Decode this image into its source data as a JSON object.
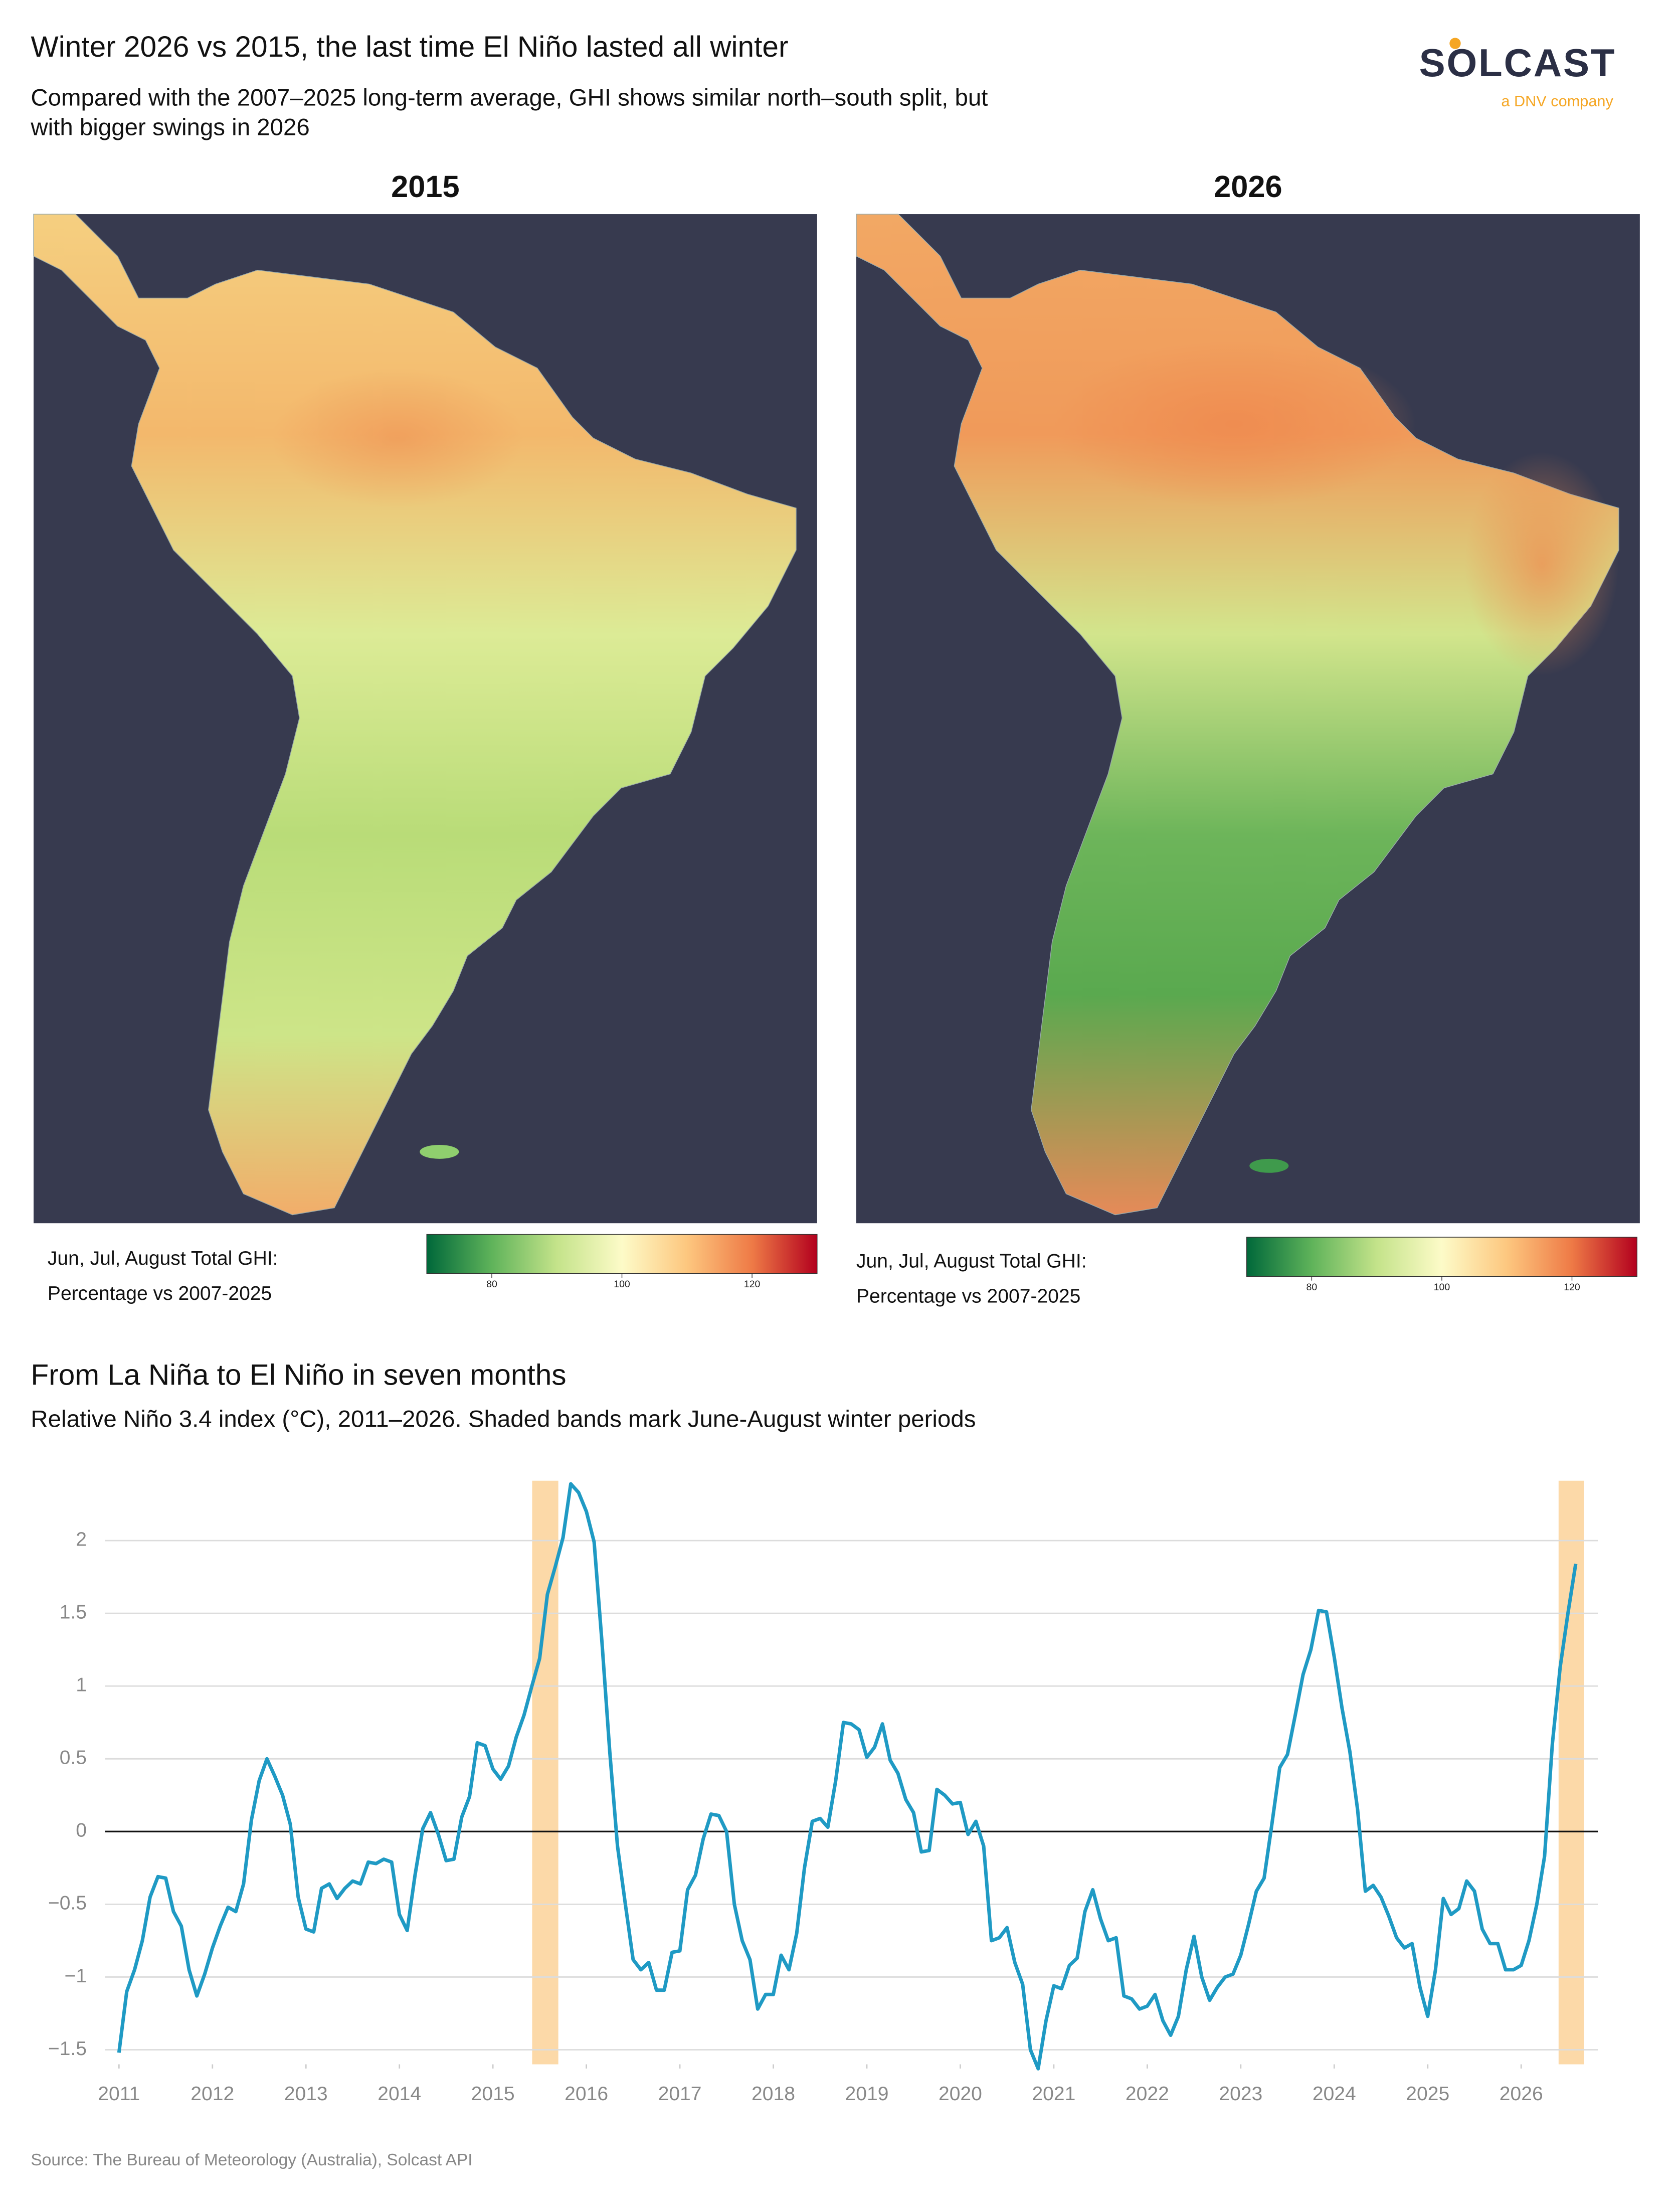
{
  "header": {
    "title": "Winter 2026 vs 2015, the last time El Niño lasted all winter",
    "subtitle": [
      "Compared with the 2007–2025 long-term average, GHI shows similar north–south split, but",
      "with bigger swings in 2026"
    ],
    "logo": "SOLCAST",
    "logo_tagline": "a DNV company"
  },
  "maps": {
    "panels": [
      {
        "title": "2015",
        "legend_title": [
          "Jun, Jul, August Total GHI:",
          "Percentage vs 2007-2025"
        ]
      },
      {
        "title": "2026",
        "legend_title": [
          "Jun, Jul, August Total GHI:",
          "Percentage vs 2007-2025"
        ]
      }
    ],
    "colorbar": {
      "lim": [
        70,
        130
      ],
      "ticks": [
        80,
        100,
        120
      ],
      "colors": [
        "#00683a",
        "#5fb35a",
        "#c4e38a",
        "#fdfbc8",
        "#fdc77f",
        "#ee7a46",
        "#b3001e"
      ]
    }
  },
  "chart_data": {
    "type": "line",
    "title": "From La Niña to El Niño in seven months",
    "subtitle": "Relative Niño 3.4 index (°C), 2011–2026. Shaded bands mark June-August winter periods",
    "x": [
      2011,
      2011.083,
      2011.167,
      2011.25,
      2011.333,
      2011.417,
      2011.5,
      2011.583,
      2011.667,
      2011.75,
      2011.833,
      2011.917,
      2012,
      2012.083,
      2012.167,
      2012.25,
      2012.333,
      2012.417,
      2012.5,
      2012.583,
      2012.667,
      2012.75,
      2012.833,
      2012.917,
      2013,
      2013.083,
      2013.167,
      2013.25,
      2013.333,
      2013.417,
      2013.5,
      2013.583,
      2013.667,
      2013.75,
      2013.833,
      2013.917,
      2014,
      2014.083,
      2014.167,
      2014.25,
      2014.333,
      2014.417,
      2014.5,
      2014.583,
      2014.667,
      2014.75,
      2014.833,
      2014.917,
      2015,
      2015.083,
      2015.167,
      2015.25,
      2015.333,
      2015.417,
      2015.5,
      2015.583,
      2015.667,
      2015.75,
      2015.833,
      2015.917,
      2016,
      2016.083,
      2016.167,
      2016.25,
      2016.333,
      2016.417,
      2016.5,
      2016.583,
      2016.667,
      2016.75,
      2016.833,
      2016.917,
      2017,
      2017.083,
      2017.167,
      2017.25,
      2017.333,
      2017.417,
      2017.5,
      2017.583,
      2017.667,
      2017.75,
      2017.833,
      2017.917,
      2018,
      2018.083,
      2018.167,
      2018.25,
      2018.333,
      2018.417,
      2018.5,
      2018.583,
      2018.667,
      2018.75,
      2018.833,
      2018.917,
      2019,
      2019.083,
      2019.167,
      2019.25,
      2019.333,
      2019.417,
      2019.5,
      2019.583,
      2019.667,
      2019.75,
      2019.833,
      2019.917,
      2020,
      2020.083,
      2020.167,
      2020.25,
      2020.333,
      2020.417,
      2020.5,
      2020.583,
      2020.667,
      2020.75,
      2020.833,
      2020.917,
      2021,
      2021.083,
      2021.167,
      2021.25,
      2021.333,
      2021.417,
      2021.5,
      2021.583,
      2021.667,
      2021.75,
      2021.833,
      2021.917,
      2022,
      2022.083,
      2022.167,
      2022.25,
      2022.333,
      2022.417,
      2022.5,
      2022.583,
      2022.667,
      2022.75,
      2022.833,
      2022.917,
      2023,
      2023.083,
      2023.167,
      2023.25,
      2023.333,
      2023.417,
      2023.5,
      2023.583,
      2023.667,
      2023.75,
      2023.833,
      2023.917,
      2024,
      2024.083,
      2024.167,
      2024.25,
      2024.333,
      2024.417,
      2024.5,
      2024.583,
      2024.667,
      2024.75,
      2024.833,
      2024.917,
      2025,
      2025.083,
      2025.167,
      2025.25,
      2025.333,
      2025.417,
      2025.5,
      2025.583,
      2025.667,
      2025.75,
      2025.833,
      2025.917,
      2026,
      2026.083,
      2026.167,
      2026.25,
      2026.333,
      2026.417,
      2026.5,
      2026.583
    ],
    "values": [
      -1.52,
      -1.1,
      -0.95,
      -0.75,
      -0.45,
      -0.31,
      -0.32,
      -0.55,
      -0.65,
      -0.95,
      -1.13,
      -0.98,
      -0.8,
      -0.65,
      -0.52,
      -0.55,
      -0.36,
      0.08,
      0.35,
      0.5,
      0.38,
      0.25,
      0.05,
      -0.45,
      -0.67,
      -0.69,
      -0.39,
      -0.36,
      -0.46,
      -0.39,
      -0.34,
      -0.36,
      -0.21,
      -0.22,
      -0.19,
      -0.21,
      -0.57,
      -0.68,
      -0.3,
      0.02,
      0.13,
      -0.02,
      -0.2,
      -0.19,
      0.1,
      0.24,
      0.61,
      0.59,
      0.43,
      0.36,
      0.45,
      0.65,
      0.8,
      1.0,
      1.19,
      1.63,
      1.82,
      2.02,
      2.39,
      2.33,
      2.2,
      1.99,
      1.3,
      0.55,
      -0.1,
      -0.5,
      -0.88,
      -0.95,
      -0.9,
      -1.09,
      -1.09,
      -0.83,
      -0.82,
      -0.4,
      -0.3,
      -0.05,
      0.12,
      0.11,
      0.0,
      -0.5,
      -0.75,
      -0.88,
      -1.22,
      -1.12,
      -1.12,
      -0.85,
      -0.95,
      -0.7,
      -0.25,
      0.07,
      0.09,
      0.03,
      0.35,
      0.75,
      0.74,
      0.7,
      0.51,
      0.58,
      0.74,
      0.49,
      0.4,
      0.22,
      0.13,
      -0.14,
      -0.13,
      0.29,
      0.25,
      0.19,
      0.2,
      -0.02,
      0.07,
      -0.1,
      -0.75,
      -0.73,
      -0.66,
      -0.9,
      -1.05,
      -1.5,
      -1.63,
      -1.3,
      -1.06,
      -1.08,
      -0.92,
      -0.87,
      -0.55,
      -0.4,
      -0.6,
      -0.75,
      -0.73,
      -1.13,
      -1.15,
      -1.22,
      -1.2,
      -1.12,
      -1.3,
      -1.4,
      -1.27,
      -0.95,
      -0.72,
      -1.0,
      -1.16,
      -1.07,
      -1.0,
      -0.98,
      -0.85,
      -0.64,
      -0.41,
      -0.32,
      0.05,
      0.44,
      0.53,
      0.8,
      1.08,
      1.25,
      1.52,
      1.51,
      1.2,
      0.85,
      0.55,
      0.15,
      -0.41,
      -0.37,
      -0.45,
      -0.58,
      -0.73,
      -0.8,
      -0.77,
      -1.07,
      -1.27,
      -0.95,
      -0.46,
      -0.57,
      -0.53,
      -0.34,
      -0.41,
      -0.67,
      -0.77,
      -0.77,
      -0.95,
      -0.95,
      -0.92,
      -0.75,
      -0.5,
      -0.17,
      0.6,
      1.13,
      1.5,
      1.84
    ],
    "color": "#1f9ac4",
    "shaded_bands": [
      [
        2015.42,
        2015.7
      ],
      [
        2026.4,
        2026.67
      ]
    ],
    "band_color": "#fcd9a8",
    "xlim": [
      2010.85,
      2026.82
    ],
    "xticks": [
      2011,
      2012,
      2013,
      2014,
      2015,
      2016,
      2017,
      2018,
      2019,
      2020,
      2021,
      2022,
      2023,
      2024,
      2025,
      2026
    ],
    "ylim": [
      -1.6,
      2.45
    ],
    "yticks": [
      {
        "value": -1.5,
        "label": "−1.5"
      },
      {
        "value": -1,
        "label": "−1"
      },
      {
        "value": -0.5,
        "label": "−0.5"
      },
      0,
      0.5,
      1,
      1.5,
      2
    ],
    "grid": true
  },
  "source": "Source: The Bureau of Meteorology (Australia), Solcast API"
}
